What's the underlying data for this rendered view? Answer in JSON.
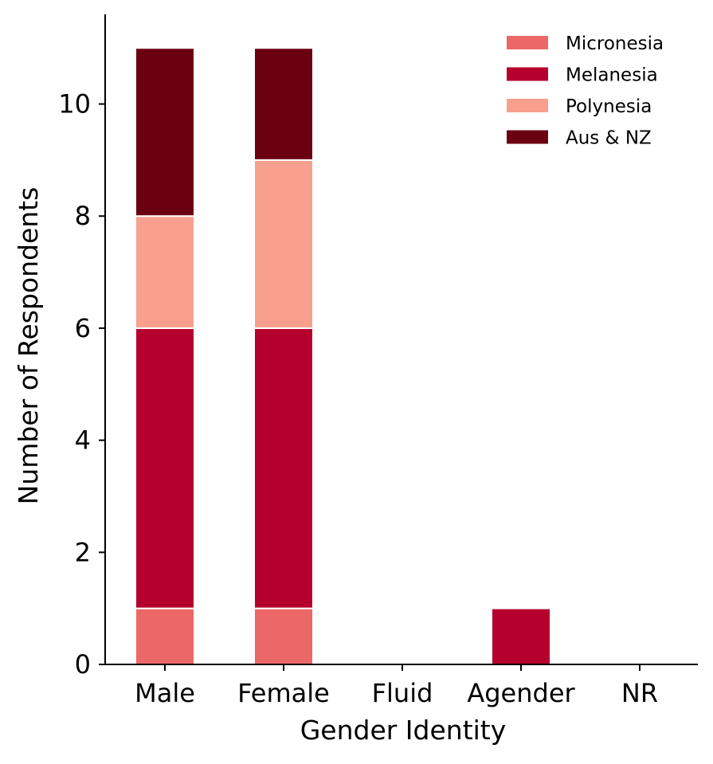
{
  "chart_data": {
    "type": "bar",
    "stacked": true,
    "title": "",
    "xlabel": "Gender Identity",
    "ylabel": "Number of Respondents",
    "categories": [
      "Male",
      "Female",
      "Fluid",
      "Agender",
      "NR"
    ],
    "series": [
      {
        "name": "Micronesia",
        "color": "#ec6767",
        "values": [
          1,
          1,
          0,
          0,
          0
        ]
      },
      {
        "name": "Melanesia",
        "color": "#b5002d",
        "values": [
          5,
          5,
          0,
          1,
          0
        ]
      },
      {
        "name": "Polynesia",
        "color": "#f8a08d",
        "values": [
          2,
          3,
          0,
          0,
          0
        ]
      },
      {
        "name": "Aus & NZ",
        "color": "#6b0011",
        "values": [
          3,
          2,
          0,
          0,
          0
        ]
      }
    ],
    "ylim": [
      0,
      11.6
    ],
    "yticks": [
      0,
      2,
      4,
      6,
      8,
      10
    ],
    "grid": false,
    "legend_position": "top-right"
  }
}
